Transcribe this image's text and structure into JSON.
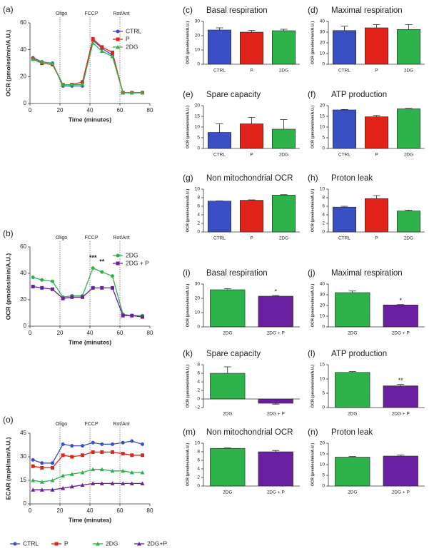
{
  "chart_data": [
    {
      "type": "line",
      "panel": "(a)",
      "ylabel": "OCR (pmoles/min/A.U.)",
      "xlabel": "Time (minutes)",
      "x": [
        2,
        8,
        15,
        22,
        28,
        35,
        42,
        48,
        55,
        62,
        68,
        75
      ],
      "xlim": [
        0,
        80
      ],
      "xticks": [
        0,
        20,
        40,
        60,
        80
      ],
      "ylim": [
        0,
        60
      ],
      "yticks": [
        0,
        20,
        40,
        60
      ],
      "legend": "upper right",
      "annotations": [
        {
          "text": "Oligo",
          "x": 20
        },
        {
          "text": "FCCP",
          "x": 40
        },
        {
          "text": "Rot/Ant",
          "x": 60
        }
      ],
      "series": [
        {
          "name": "CTRL",
          "color": "#3b4fc4",
          "marker": "circle",
          "values": [
            34,
            31,
            30,
            13,
            13,
            13,
            47,
            41,
            36,
            8,
            8,
            8
          ]
        },
        {
          "name": "P",
          "color": "#e2231a",
          "marker": "square",
          "values": [
            33,
            30,
            29,
            14,
            14,
            16,
            48,
            42,
            38,
            8,
            8,
            8
          ]
        },
        {
          "name": "2DG",
          "color": "#2db34a",
          "marker": "triangle",
          "values": [
            33,
            31,
            30,
            14,
            14,
            14,
            45,
            39,
            35,
            8,
            8,
            8
          ]
        }
      ]
    },
    {
      "type": "line",
      "panel": "(b)",
      "ylabel": "OCR (pmoles/min/A.U.)",
      "xlabel": "Time (minutes)",
      "x": [
        2,
        8,
        15,
        22,
        28,
        35,
        42,
        48,
        55,
        62,
        68,
        75
      ],
      "xlim": [
        0,
        80
      ],
      "xticks": [
        0,
        20,
        40,
        60,
        80
      ],
      "ylim": [
        0,
        60
      ],
      "yticks": [
        0,
        20,
        40,
        60
      ],
      "legend": "upper right",
      "annotations": [
        {
          "text": "Oligo",
          "x": 20
        },
        {
          "text": "FCCP",
          "x": 40
        },
        {
          "text": "Rot/Ant",
          "x": 60
        }
      ],
      "significance": [
        {
          "text": "***",
          "x": 42
        },
        {
          "text": "**",
          "x": 48
        }
      ],
      "series": [
        {
          "name": "2DG",
          "color": "#2db34a",
          "marker": "circle",
          "values": [
            37,
            35,
            34,
            22,
            23,
            23,
            44,
            41,
            38,
            9,
            8,
            8
          ]
        },
        {
          "name": "2DG + P",
          "color": "#6a1fa0",
          "marker": "square",
          "values": [
            30,
            29,
            28,
            21,
            22,
            22,
            29,
            29,
            29,
            8,
            8,
            7
          ]
        }
      ]
    },
    {
      "type": "line",
      "panel": "(o)",
      "ylabel": "ECAR (mpH/min/A.U.)",
      "xlabel": "Time (minutes)",
      "x": [
        2,
        8,
        15,
        22,
        28,
        35,
        42,
        48,
        55,
        62,
        68,
        75
      ],
      "xlim": [
        0,
        80
      ],
      "xticks": [
        0,
        20,
        40,
        60,
        80
      ],
      "ylim": [
        0,
        45
      ],
      "yticks": [
        0,
        15,
        30,
        45
      ],
      "legend": "bottom",
      "annotations": [
        {
          "text": "Oligo",
          "x": 20
        },
        {
          "text": "FCCP",
          "x": 40
        },
        {
          "text": "Rot/Ant",
          "x": 60
        }
      ],
      "series": [
        {
          "name": "CTRL",
          "color": "#3b4fc4",
          "marker": "circle",
          "values": [
            28,
            26,
            26,
            38,
            37,
            37,
            39,
            38,
            38,
            39,
            40,
            38
          ]
        },
        {
          "name": "P",
          "color": "#e2231a",
          "marker": "square",
          "values": [
            24,
            23,
            23,
            31,
            30,
            31,
            33,
            33,
            33,
            32,
            31,
            31
          ]
        },
        {
          "name": "2DG",
          "color": "#2db34a",
          "marker": "triangle",
          "values": [
            15,
            14,
            15,
            18,
            19,
            20,
            22,
            22,
            21,
            21,
            20,
            20
          ]
        },
        {
          "name": "2DG+P",
          "color": "#6a1fa0",
          "marker": "triangle",
          "values": [
            9,
            9,
            9,
            10,
            11,
            12,
            13,
            13,
            13,
            13,
            13,
            13
          ]
        }
      ]
    },
    {
      "type": "bar",
      "panel": "(c)",
      "title": "Basal respiration",
      "ylabel": "OCR (pmoles/min/A.U.)",
      "categories": [
        "CTRL",
        "P",
        "2DG"
      ],
      "colors": [
        "#3b4fc4",
        "#e2231a",
        "#2db34a"
      ],
      "values": [
        24,
        22.5,
        23.5
      ],
      "errors": [
        1.5,
        1.2,
        1.0
      ],
      "ylim": [
        0,
        30
      ],
      "yticks": [
        0,
        10,
        20,
        30
      ]
    },
    {
      "type": "bar",
      "panel": "(d)",
      "title": "Maximal respiration",
      "ylabel": "OCR (pmoles/min/A.U.)",
      "categories": [
        "CTRL",
        "P",
        "2DG"
      ],
      "colors": [
        "#3b4fc4",
        "#e2231a",
        "#2db34a"
      ],
      "values": [
        31.5,
        34,
        32.5
      ],
      "errors": [
        4,
        3,
        4.5
      ],
      "ylim": [
        0,
        40
      ],
      "yticks": [
        0,
        10,
        20,
        30,
        40
      ]
    },
    {
      "type": "bar",
      "panel": "(e)",
      "title": "Spare capacity",
      "ylabel": "OCR (pmoles/min/A.U.)",
      "categories": [
        "CTRL",
        "P",
        "2DG"
      ],
      "colors": [
        "#3b4fc4",
        "#e2231a",
        "#2db34a"
      ],
      "values": [
        7.5,
        11.5,
        9
      ],
      "errors": [
        4,
        3,
        4.5
      ],
      "ylim": [
        0,
        20
      ],
      "yticks": [
        0,
        5,
        10,
        15,
        20
      ]
    },
    {
      "type": "bar",
      "panel": "(f)",
      "title": "ATP production",
      "ylabel": "OCR (pmoles/min/A.U.)",
      "categories": [
        "CTRL",
        "P",
        "2DG"
      ],
      "colors": [
        "#3b4fc4",
        "#e2231a",
        "#2db34a"
      ],
      "values": [
        18,
        14.8,
        18.5
      ],
      "errors": [
        0.2,
        0.6,
        0.2
      ],
      "ylim": [
        0,
        20
      ],
      "yticks": [
        0,
        5,
        10,
        15,
        20
      ]
    },
    {
      "type": "bar",
      "panel": "(g)",
      "title": "Non mitochondrial OCR",
      "ylabel": "OCR (pmoles/min/A.U.)",
      "categories": [
        "CTRL",
        "P",
        "2DG"
      ],
      "colors": [
        "#3b4fc4",
        "#e2231a",
        "#2db34a"
      ],
      "values": [
        7.2,
        7.4,
        8.6
      ],
      "errors": [
        0.05,
        0.1,
        0.1
      ],
      "ylim": [
        0,
        10
      ],
      "yticks": [
        0,
        2,
        4,
        6,
        8,
        10
      ]
    },
    {
      "type": "bar",
      "panel": "(h)",
      "title": "Proton leak",
      "ylabel": "OCR (pmoles/min/A.U.)",
      "categories": [
        "CTRL",
        "P",
        "2DG"
      ],
      "colors": [
        "#3b4fc4",
        "#e2231a",
        "#2db34a"
      ],
      "values": [
        5.8,
        7.8,
        4.9
      ],
      "errors": [
        0.2,
        0.7,
        0.2
      ],
      "ylim": [
        0,
        10
      ],
      "yticks": [
        0,
        2,
        4,
        6,
        8,
        10
      ]
    },
    {
      "type": "bar",
      "panel": "(i)",
      "title": "Basal respiration",
      "ylabel": "OCR (pmoles/min/A.U.)",
      "categories": [
        "2DG",
        "2DG + P"
      ],
      "colors": [
        "#2db34a",
        "#6a1fa0"
      ],
      "values": [
        26,
        21.5
      ],
      "errors": [
        0.8,
        0.5
      ],
      "significance": [
        null,
        "*"
      ],
      "ylim": [
        0,
        30
      ],
      "yticks": [
        0,
        10,
        20,
        30
      ]
    },
    {
      "type": "bar",
      "panel": "(j)",
      "title": "Maximal respiration",
      "ylabel": "OCR (pmoles/min/A.U.)",
      "categories": [
        "2DG",
        "2DG + P"
      ],
      "colors": [
        "#2db34a",
        "#6a1fa0"
      ],
      "values": [
        32,
        20.5
      ],
      "errors": [
        1.5,
        0.3
      ],
      "significance": [
        null,
        "*"
      ],
      "ylim": [
        0,
        40
      ],
      "yticks": [
        0,
        10,
        20,
        30,
        40
      ]
    },
    {
      "type": "bar",
      "panel": "(k)",
      "title": "Spare capacity",
      "ylabel": "OCR (pmoles/min/A.U.)",
      "categories": [
        "2DG",
        "2DG + P"
      ],
      "colors": [
        "#2db34a",
        "#6a1fa0"
      ],
      "values": [
        6,
        -1
      ],
      "errors": [
        1.5,
        0.2
      ],
      "ylim": [
        -2,
        8
      ],
      "yticks": [
        -2,
        0,
        2,
        4,
        6,
        8
      ]
    },
    {
      "type": "bar",
      "panel": "(l)",
      "title": "ATP production",
      "ylabel": "OCR (pmoles/min/A.U.)",
      "categories": [
        "2DG",
        "2DG + P"
      ],
      "colors": [
        "#2db34a",
        "#6a1fa0"
      ],
      "values": [
        12.3,
        7.6
      ],
      "errors": [
        0.3,
        0.5
      ],
      "significance": [
        null,
        "**"
      ],
      "ylim": [
        0,
        15
      ],
      "yticks": [
        0,
        5,
        10,
        15
      ]
    },
    {
      "type": "bar",
      "panel": "(m)",
      "title": "Non mitochondrial OCR",
      "ylabel": "OCR (pmoles/min/A.U.)",
      "categories": [
        "2DG",
        "2DG + P"
      ],
      "colors": [
        "#2db34a",
        "#6a1fa0"
      ],
      "values": [
        8.8,
        8
      ],
      "errors": [
        0.1,
        0.3
      ],
      "ylim": [
        0,
        10
      ],
      "yticks": [
        0,
        2,
        4,
        6,
        8,
        10
      ]
    },
    {
      "type": "bar",
      "panel": "(n)",
      "title": "Proton leak",
      "ylabel": "OCR (pmoles/min/A.U.)",
      "categories": [
        "2DG",
        "2DG + P"
      ],
      "colors": [
        "#2db34a",
        "#6a1fa0"
      ],
      "values": [
        13.5,
        14
      ],
      "errors": [
        0.3,
        0.5
      ],
      "ylim": [
        0,
        20
      ],
      "yticks": [
        0,
        5,
        10,
        15,
        20
      ]
    }
  ]
}
